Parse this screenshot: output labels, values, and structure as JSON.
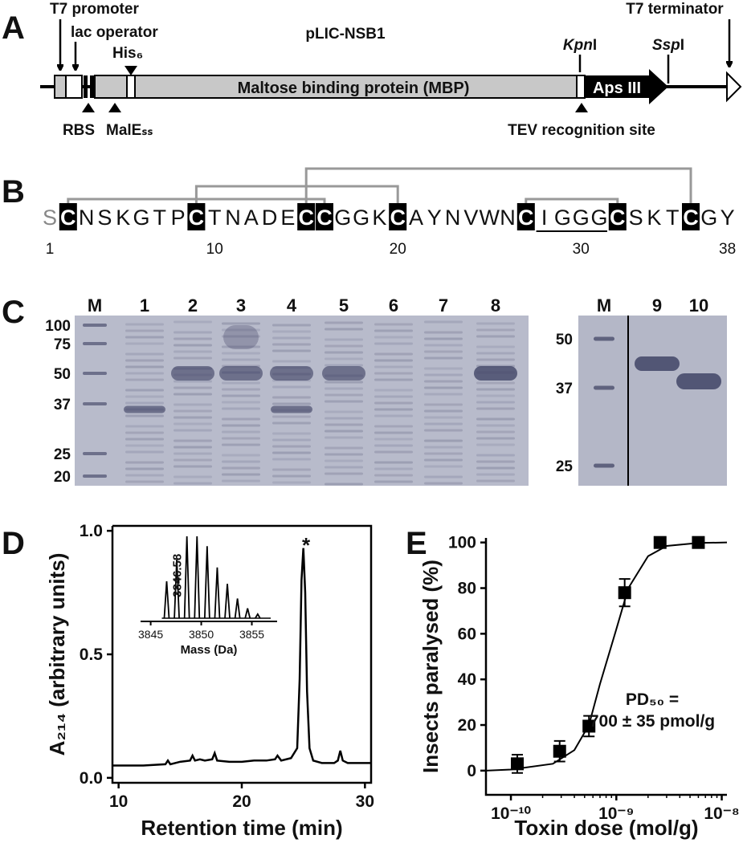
{
  "panel_a": {
    "label": "A",
    "title": "pLIC-NSB1",
    "t7_promoter": "T7 promoter",
    "lac_operator": "lac operator",
    "his_tag": "His₆",
    "mbp": "Maltose binding protein (MBP)",
    "kpn_site": [
      "Kpn",
      "I"
    ],
    "ssp_site": [
      "Ssp",
      "I"
    ],
    "t7_terminator": "T7 terminator",
    "insert": "Aps III",
    "rbs": "RBS",
    "male_ss": "MalEₛₛ",
    "tev_site": "TEV recognition site"
  },
  "panel_b": {
    "label": "B",
    "sequence": [
      "S",
      "C",
      "N",
      "S",
      "K",
      "G",
      "T",
      "P",
      "C",
      "T",
      "N",
      "A",
      "D",
      "E",
      "C",
      "C",
      "G",
      "G",
      "K",
      "C",
      "A",
      "Y",
      "N",
      "V",
      "W",
      "N",
      "C",
      "I",
      "G",
      "G",
      "G",
      "C",
      "S",
      "K",
      "T",
      "C",
      "G",
      "Y"
    ],
    "positions": [
      1,
      10,
      20,
      30,
      38
    ]
  },
  "panel_c": {
    "label": "C",
    "gel1": {
      "lanes": [
        "M",
        "1",
        "2",
        "3",
        "4",
        "5",
        "6",
        "7",
        "8"
      ],
      "markers": [
        100,
        75,
        50,
        37,
        25,
        20
      ]
    },
    "gel2": {
      "lanes": [
        "M",
        "9",
        "10"
      ],
      "markers": [
        50,
        37,
        25
      ]
    }
  },
  "chart_data": [
    {
      "type": "line",
      "panel_label": "D",
      "x_label": "Retention time (min)",
      "y_label": "A₂₁₄ (arbitrary units)",
      "annotation": "*",
      "x": [
        9.5,
        12,
        13.8,
        14,
        14.2,
        15,
        15.8,
        16,
        16.2,
        16.6,
        17,
        17.6,
        17.8,
        18,
        19,
        20,
        21,
        22,
        22.7,
        22.9,
        23.2,
        24,
        24.5,
        24.7,
        24.85,
        25,
        25.15,
        25.3,
        25.5,
        25.8,
        26.5,
        27.5,
        27.8,
        28,
        28.2,
        28.6,
        30.5
      ],
      "series": [
        {
          "color": "#000000",
          "values": [
            0.05,
            0.05,
            0.055,
            0.07,
            0.055,
            0.065,
            0.07,
            0.09,
            0.07,
            0.075,
            0.07,
            0.075,
            0.1,
            0.07,
            0.065,
            0.065,
            0.07,
            0.07,
            0.075,
            0.09,
            0.07,
            0.08,
            0.12,
            0.4,
            0.8,
            0.93,
            0.75,
            0.35,
            0.12,
            0.07,
            0.06,
            0.06,
            0.07,
            0.11,
            0.07,
            0.06,
            0.06
          ]
        }
      ],
      "xlim": [
        9.5,
        30.5
      ],
      "ylim": [
        -0.02,
        1.02
      ],
      "xticks": [
        10,
        20,
        30
      ],
      "yticks": [
        {
          "value": 0,
          "label": "0.0"
        },
        {
          "value": 0.5,
          "label": "0.5"
        },
        {
          "value": 1,
          "label": "1.0"
        }
      ],
      "inset": {
        "type": "line",
        "x_label": "Mass (Da)",
        "annotation": "3846.58",
        "x": [
          3846.58,
          3847.58,
          3848.58,
          3849.58,
          3850.58,
          3851.58,
          3852.58,
          3853.58,
          3854.58,
          3855.58
        ],
        "values": [
          0.45,
          0.72,
          1.0,
          1.0,
          0.88,
          0.62,
          0.42,
          0.24,
          0.12,
          0.05
        ],
        "xlim": [
          3844,
          3857.5
        ],
        "ylim": [
          0,
          1
        ],
        "xticks": [
          3845,
          3850,
          3855
        ]
      }
    },
    {
      "type": "scatter",
      "panel_label": "E",
      "x_label": "Toxin dose (mol/g)",
      "y_label": "Insects paralysed (%)",
      "annotation": [
        "PD₅₀ =",
        "700 ± 35 pmol/g"
      ],
      "log_x": true,
      "x": [
        1.15e-10,
        2.9e-10,
        5.5e-10,
        1.2e-09,
        2.6e-09,
        6e-09
      ],
      "series": [
        {
          "color": "#000000",
          "values": [
            3,
            8.5,
            19.5,
            78,
            100,
            100
          ],
          "errors": [
            4,
            4.5,
            4.5,
            6,
            0,
            0
          ]
        }
      ],
      "fit": {
        "x": [
          5.8e-11,
          1e-10,
          2.5e-10,
          4e-10,
          5.5e-10,
          7e-10,
          1e-09,
          1.3e-09,
          2e-09,
          3e-09,
          6e-09,
          1.12e-08
        ],
        "values": [
          0,
          0.5,
          3,
          9,
          20,
          38,
          62,
          80,
          94,
          98.5,
          99.8,
          100
        ]
      },
      "xlim": [
        5.8e-11,
        1.12e-08
      ],
      "ylim": [
        -10.6,
        102
      ],
      "xticks": [
        {
          "value": 1e-10,
          "label": "10⁻¹⁰"
        },
        {
          "value": 1e-09,
          "label": "10⁻⁹"
        },
        {
          "value": 1e-08,
          "label": "10⁻⁸"
        }
      ],
      "yticks": [
        0,
        20,
        40,
        60,
        80,
        100
      ]
    }
  ]
}
